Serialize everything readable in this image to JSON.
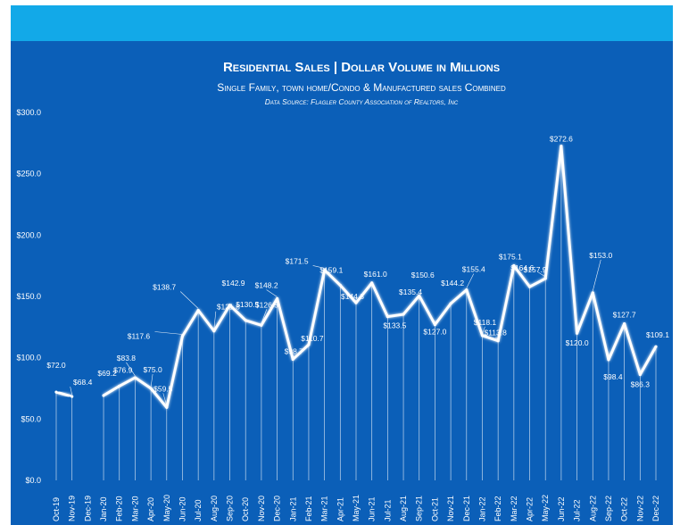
{
  "colors": {
    "band": "#12a9e8",
    "panel": "#0b5fb8",
    "line": "#ffffff"
  },
  "chart_data": {
    "type": "line",
    "title": "Residential Sales | Dollar Volume in Millions",
    "subtitle": "Single Family, town home/Condo & Manufactured sales Combined",
    "source": "Data Source:  Flagler County Association of Realtors, Inc",
    "xlabel": "",
    "ylabel": "",
    "ylim": [
      0,
      300
    ],
    "y_ticks": [
      "$0.0",
      "$50.0",
      "$100.0",
      "$150.0",
      "$200.0",
      "$250.0",
      "$300.0"
    ],
    "grid": false,
    "categories": [
      "Oct-19",
      "Nov-19",
      "Dec-19",
      "Jan-20",
      "Feb-20",
      "Mar-20",
      "Apr-20",
      "May-20",
      "Jun-20",
      "Jul-20",
      "Aug-20",
      "Sep-20",
      "Oct-20",
      "Nov-20",
      "Dec-20",
      "Jan-21",
      "Feb-21",
      "Mar-21",
      "Apr-21",
      "May-21",
      "Jun-21",
      "Jul-21",
      "Aug-21",
      "Sep-21",
      "Oct-21",
      "Nov-21",
      "Dec-21",
      "Jan-22",
      "Feb-22",
      "Mar-22",
      "Apr-22",
      "May-22",
      "Jun-22",
      "Jul-22",
      "Aug-22",
      "Sep-22",
      "Oct-22",
      "Nov-22",
      "Dec-22"
    ],
    "values": [
      72.0,
      68.4,
      null,
      69.2,
      76.9,
      83.8,
      75.0,
      59.5,
      117.6,
      138.7,
      121.8,
      142.9,
      130.5,
      126.5,
      148.2,
      98.7,
      110.7,
      171.5,
      159.1,
      144.8,
      161.0,
      133.5,
      135.4,
      150.6,
      127.0,
      144.2,
      155.4,
      118.1,
      113.8,
      175.1,
      157.9,
      164.6,
      272.6,
      120.0,
      153.0,
      98.4,
      127.7,
      86.3,
      109.1
    ],
    "labels": [
      "$72.0",
      "$68.4",
      "",
      "$69.2",
      "$76.9",
      "$83.8",
      "$75.0",
      "$59.5",
      "$117.6",
      "$138.7",
      "$121.8",
      "$142.9",
      "$130.5",
      "$126.5",
      "$148.2",
      "$98.7",
      "$110.7",
      "$171.5",
      "$159.1",
      "$144.8",
      "$161.0",
      "$133.5",
      "$135.4",
      "$150.6",
      "$127.0",
      "$144.2",
      "$155.4",
      "$118.1",
      "$113.8",
      "$175.1",
      "$157.9",
      "$164.6",
      "$272.6",
      "$120.0",
      "$153.0",
      "$98.4",
      "$127.7",
      "$86.3",
      "$109.1"
    ]
  }
}
